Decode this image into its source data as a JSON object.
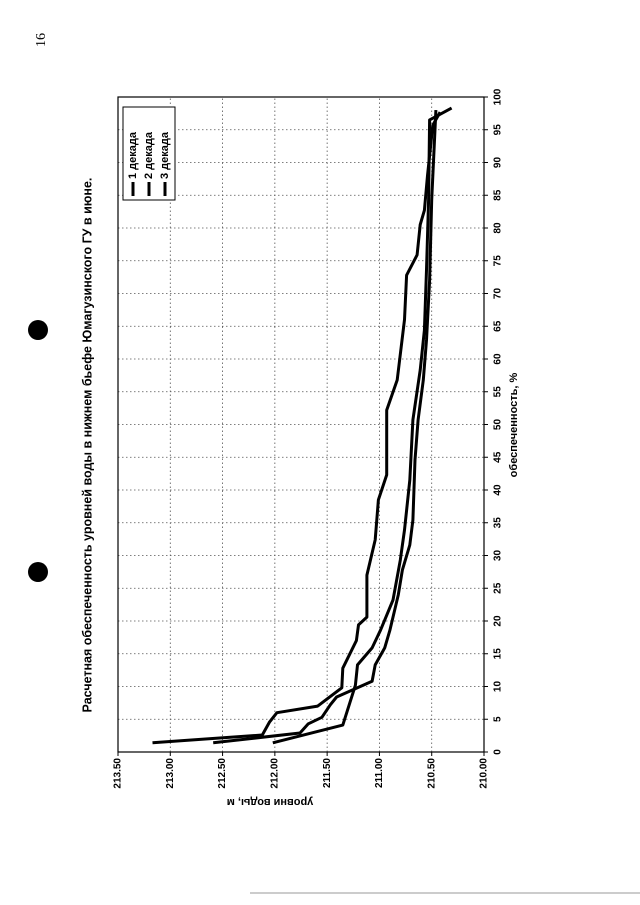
{
  "page_number": "16",
  "chart_data": {
    "type": "line",
    "title": "Расчетная обеспеченность уровней воды в нижнем бьефе Юмагузинского ГУ в июне.",
    "x_label": "обеспеченность, %",
    "y_label": "уровни воды, м",
    "xlim": [
      0,
      100
    ],
    "xticks": [
      0,
      5,
      10,
      15,
      20,
      25,
      30,
      35,
      40,
      45,
      50,
      55,
      60,
      65,
      70,
      75,
      80,
      85,
      90,
      95,
      100
    ],
    "ylim": [
      210.0,
      213.5
    ],
    "yticks": [
      {
        "value": 210.0,
        "label": "210.00"
      },
      {
        "value": 210.5,
        "label": "210.50"
      },
      {
        "value": 211.0,
        "label": "211.00"
      },
      {
        "value": 211.5,
        "label": "211.50"
      },
      {
        "value": 212.0,
        "label": "212.00"
      },
      {
        "value": 212.5,
        "label": "212.50"
      },
      {
        "value": 213.0,
        "label": "213.00"
      },
      {
        "value": 213.5,
        "label": "213.50"
      }
    ],
    "grid": true,
    "legend": "top-right",
    "series": [
      {
        "name": "1 декада",
        "color": "#000000",
        "x": [
          1.4,
          2.6,
          4.6,
          6,
          7,
          9.8,
          12.8,
          17,
          19.4,
          20.6,
          27,
          32.4,
          38.5,
          42.3,
          52.2,
          56.8,
          66,
          72.8,
          75.9,
          80.5,
          82.7,
          88,
          95.7,
          97.7
        ],
        "values": [
          213.17,
          212.12,
          212.05,
          211.98,
          211.59,
          211.36,
          211.35,
          211.22,
          211.2,
          211.12,
          211.12,
          211.04,
          211.01,
          210.93,
          210.93,
          210.83,
          210.76,
          210.74,
          210.64,
          210.61,
          210.57,
          210.54,
          210.49,
          210.42
        ]
      },
      {
        "name": "2 декада",
        "color": "#000000",
        "x": [
          1.4,
          2.9,
          4.3,
          5.3,
          7.2,
          8.4,
          10.8,
          13.3,
          15.9,
          18.6,
          24,
          27.8,
          31.6,
          35.4,
          44.6,
          50.7,
          56.8,
          62.9,
          72,
          84.3,
          98
        ],
        "values": [
          212.59,
          211.76,
          211.68,
          211.55,
          211.47,
          211.41,
          211.07,
          211.04,
          210.95,
          210.9,
          210.82,
          210.78,
          210.71,
          210.68,
          210.66,
          210.63,
          210.58,
          210.55,
          210.52,
          210.5,
          210.46
        ]
      },
      {
        "name": "3 декада",
        "color": "#000000",
        "x": [
          1.4,
          4.1,
          10.2,
          13.3,
          15.9,
          18.6,
          23.2,
          29.3,
          33.9,
          41.5,
          50.7,
          58.3,
          64.4,
          73.6,
          84.3,
          96.5,
          98.3
        ],
        "values": [
          212.02,
          211.35,
          211.23,
          211.21,
          211.07,
          210.99,
          210.87,
          210.8,
          210.76,
          210.71,
          210.68,
          210.61,
          210.57,
          210.55,
          210.53,
          210.52,
          210.31
        ]
      }
    ]
  }
}
